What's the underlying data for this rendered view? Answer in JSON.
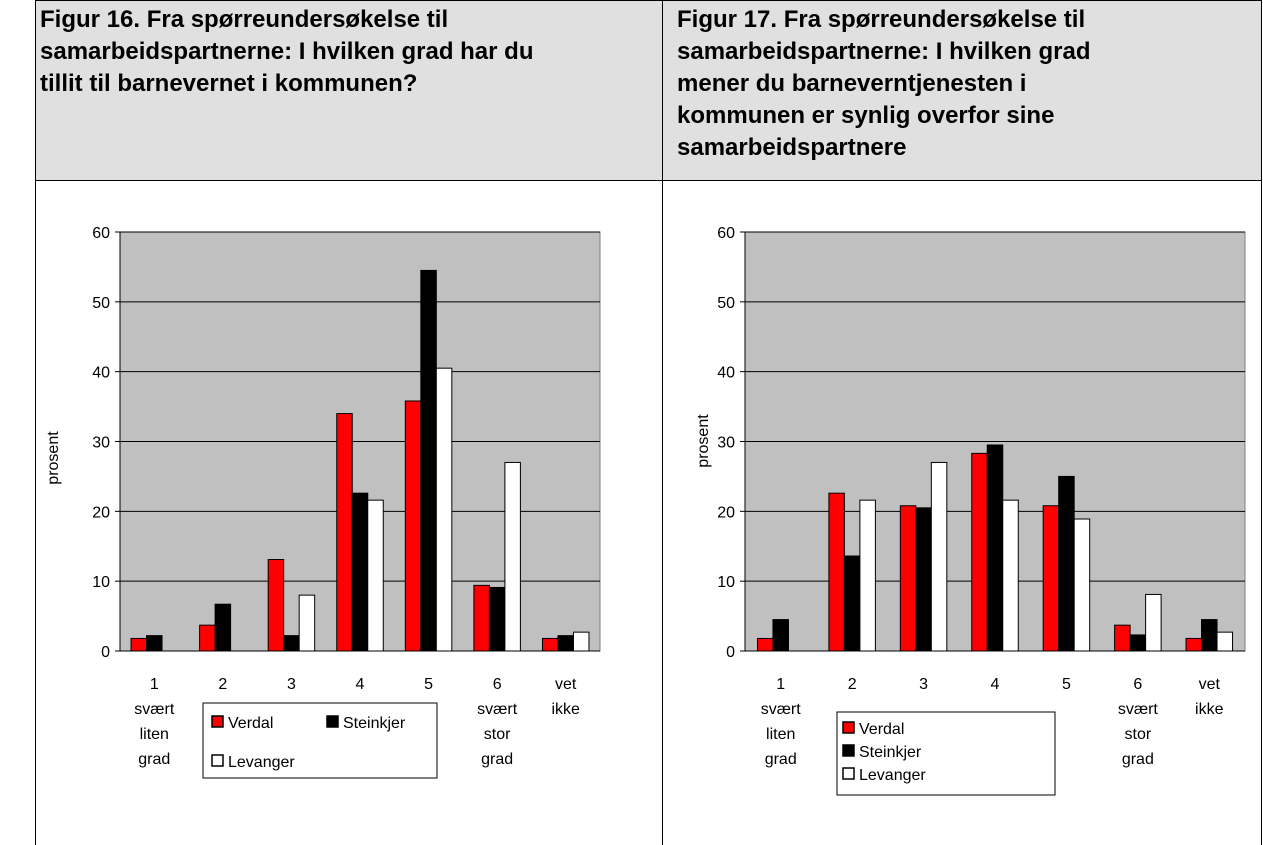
{
  "chart_data": [
    {
      "type": "bar",
      "title": [
        "Figur 16. Fra spørreundersøkelse til",
        "samarbeidspartnerne: I hvilken grad har du",
        "tillit til barnevernet i kommunen?"
      ],
      "y_label": "prosent",
      "categories": [
        [
          "1",
          "svært",
          "liten",
          "grad"
        ],
        [
          "2"
        ],
        [
          "3"
        ],
        [
          "4"
        ],
        [
          "5"
        ],
        [
          "6",
          "svært",
          "stor",
          "grad"
        ],
        [
          "vet",
          "ikke"
        ]
      ],
      "series": [
        {
          "name": "Verdal",
          "color": "#ff0000",
          "values": [
            1.8,
            3.7,
            13.1,
            34,
            35.8,
            9.4,
            1.8
          ]
        },
        {
          "name": "Steinkjer",
          "color": "#000000",
          "values": [
            2.2,
            6.7,
            2.2,
            22.6,
            54.5,
            9.1,
            2.2
          ]
        },
        {
          "name": "Levanger",
          "color": "#ffffff",
          "values": [
            0,
            0,
            8,
            21.6,
            40.5,
            27,
            2.7
          ]
        }
      ],
      "ylim": [
        0,
        60
      ],
      "yticks": [
        0,
        10,
        20,
        30,
        40,
        50,
        60
      ],
      "grid": true
    },
    {
      "type": "bar",
      "title": [
        "Figur 17. Fra spørreundersøkelse til",
        "samarbeidspartnerne: I hvilken grad",
        "mener du barneverntjenesten i",
        "kommunen er synlig overfor sine",
        "samarbeidspartnere"
      ],
      "y_label": "prosent",
      "categories": [
        [
          "1",
          "svært",
          "liten",
          "grad"
        ],
        [
          "2"
        ],
        [
          "3"
        ],
        [
          "4"
        ],
        [
          "5"
        ],
        [
          "6",
          "svært",
          "stor",
          "grad"
        ],
        [
          "vet",
          "ikke"
        ]
      ],
      "series": [
        {
          "name": "Verdal",
          "color": "#ff0000",
          "values": [
            1.8,
            22.6,
            20.8,
            28.3,
            20.8,
            3.7,
            1.8
          ]
        },
        {
          "name": "Steinkjer",
          "color": "#000000",
          "values": [
            4.5,
            13.6,
            20.5,
            29.5,
            25,
            2.3,
            4.5
          ]
        },
        {
          "name": "Levanger",
          "color": "#ffffff",
          "values": [
            0,
            21.6,
            27,
            21.6,
            18.9,
            8.1,
            2.7
          ]
        }
      ],
      "ylim": [
        0,
        60
      ],
      "yticks": [
        0,
        10,
        20,
        30,
        40,
        50,
        60
      ],
      "grid": true
    }
  ]
}
